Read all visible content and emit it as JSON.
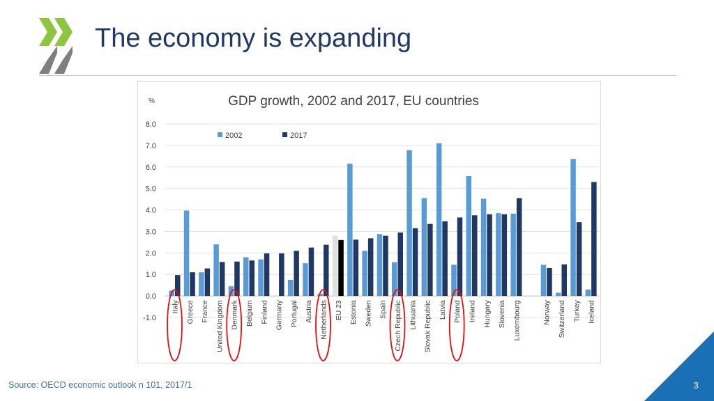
{
  "slide": {
    "title": "The economy is expanding",
    "source": "Source: OECD economic outlook n 101, 2017/1",
    "page_number": "3"
  },
  "colors": {
    "title": "#1f3864",
    "series_2002": "#5b9bd5",
    "series_2017": "#1f3864",
    "eu23_2002": "#e0e0e0",
    "eu23_2017": "#000000",
    "highlight_circle": "#e01010",
    "logo_green": "#8cc63f",
    "logo_grey": "#7f7f7f",
    "corner": "#1a6fb5"
  },
  "chart_data": {
    "type": "bar",
    "title": "GDP growth, 2002 and 2017, EU countries",
    "ylabel": "%",
    "ylim": [
      -1.0,
      8.0
    ],
    "yticks": [
      "8.0",
      "7.0",
      "6.0",
      "5.0",
      "4.0",
      "3.0",
      "2.0",
      "1.0",
      "0.0",
      "-1.0"
    ],
    "grid": true,
    "legend": "top-left",
    "categories": [
      "Italy",
      "Greece",
      "France",
      "United Kingdom",
      "Denmark",
      "Belgium",
      "Finland",
      "Germany",
      "Portugal",
      "Austria",
      "Netherlands",
      "EU 23",
      "Estonia",
      "Sweden",
      "Spain",
      "Czech Republic",
      "Lithuania",
      "Slovak Republic",
      "Latvia",
      "Poland",
      "Ireland",
      "Hungary",
      "Slovenia",
      "Luxembourg",
      "Norway",
      "Switzerland",
      "Turkey",
      "Iceland"
    ],
    "series": [
      {
        "name": "2002",
        "values": [
          0.25,
          3.97,
          1.1,
          2.4,
          0.45,
          1.8,
          1.7,
          0.0,
          0.75,
          1.52,
          0.1,
          2.8,
          6.15,
          2.1,
          2.88,
          1.57,
          6.78,
          4.55,
          7.1,
          1.45,
          5.57,
          4.52,
          3.85,
          3.83,
          1.45,
          0.15,
          6.37,
          0.3
        ]
      },
      {
        "name": "2017",
        "values": [
          0.97,
          1.1,
          1.28,
          1.58,
          1.6,
          1.65,
          1.98,
          1.98,
          2.1,
          2.25,
          2.38,
          2.6,
          2.62,
          2.68,
          2.8,
          2.95,
          3.15,
          3.35,
          3.47,
          3.65,
          3.75,
          3.8,
          3.8,
          4.55,
          1.3,
          1.47,
          3.43,
          5.3
        ]
      }
    ],
    "highlighted": [
      "Italy",
      "Denmark",
      "Netherlands",
      "Czech Republic",
      "Poland"
    ]
  }
}
